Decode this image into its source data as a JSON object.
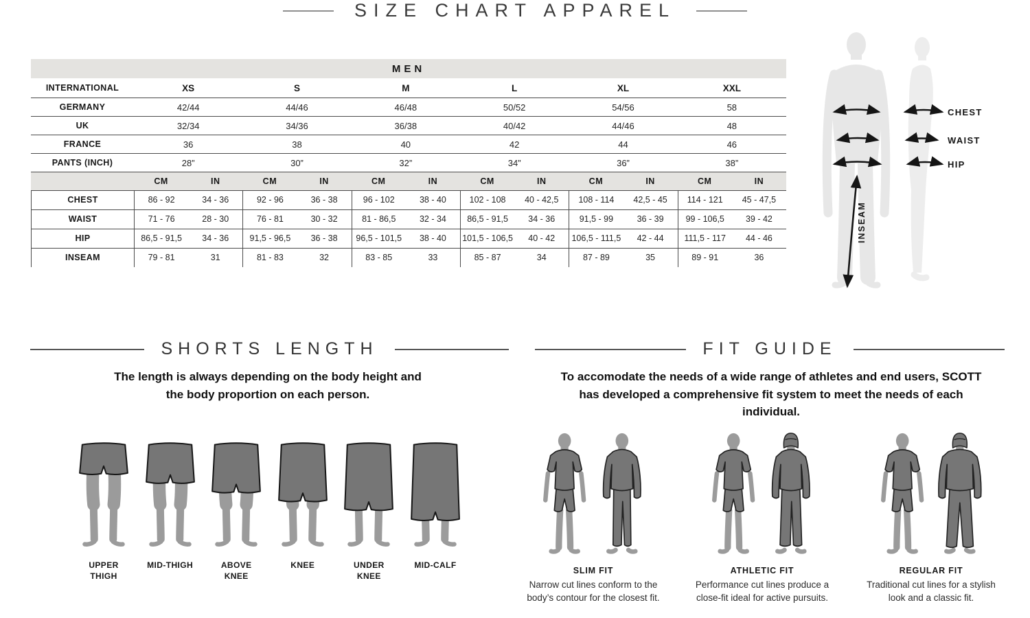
{
  "page_title": "SIZE CHART APPAREL",
  "size_table": {
    "gender_header": "MEN",
    "sizes_row_label": "INTERNATIONAL",
    "sizes": [
      "XS",
      "S",
      "M",
      "L",
      "XL",
      "XXL"
    ],
    "country_rows": [
      {
        "label": "GERMANY",
        "values": [
          "42/44",
          "44/46",
          "46/48",
          "50/52",
          "54/56",
          "58"
        ]
      },
      {
        "label": "UK",
        "values": [
          "32/34",
          "34/36",
          "36/38",
          "40/42",
          "44/46",
          "48"
        ]
      },
      {
        "label": "FRANCE",
        "values": [
          "36",
          "38",
          "40",
          "42",
          "44",
          "46"
        ]
      },
      {
        "label": "PANTS (INCH)",
        "values": [
          "28”",
          "30”",
          "32”",
          "34”",
          "36”",
          "38”"
        ]
      }
    ],
    "unit_headers": {
      "cm": "CM",
      "in": "IN"
    },
    "measurement_rows": [
      {
        "label": "CHEST",
        "cm": [
          "86 - 92",
          "92 - 96",
          "96 - 102",
          "102 - 108",
          "108 - 114",
          "114 - 121"
        ],
        "in": [
          "34 - 36",
          "36 - 38",
          "38 - 40",
          "40 - 42,5",
          "42,5 - 45",
          "45 - 47,5"
        ]
      },
      {
        "label": "WAIST",
        "cm": [
          "71 - 76",
          "76 - 81",
          "81 - 86,5",
          "86,5 - 91,5",
          "91,5 - 99",
          "99 - 106,5"
        ],
        "in": [
          "28 - 30",
          "30 - 32",
          "32 - 34",
          "34 - 36",
          "36 - 39",
          "39 - 42"
        ]
      },
      {
        "label": "HIP",
        "cm": [
          "86,5 - 91,5",
          "91,5 - 96,5",
          "96,5 - 101,5",
          "101,5 - 106,5",
          "106,5 - 111,5",
          "111,5 - 117"
        ],
        "in": [
          "34 - 36",
          "36 - 38",
          "38 - 40",
          "40 - 42",
          "42 - 44",
          "44 - 46"
        ]
      },
      {
        "label": "INSEAM",
        "cm": [
          "79 - 81",
          "81 - 83",
          "83 - 85",
          "85 - 87",
          "87 - 89",
          "89 - 91"
        ],
        "in": [
          "31",
          "32",
          "33",
          "34",
          "35",
          "36"
        ]
      }
    ]
  },
  "body_diagram": {
    "chest_label": "CHEST",
    "waist_label": "WAIST",
    "hip_label": "HIP",
    "inseam_label": "INSEAM"
  },
  "shorts_section": {
    "title": "SHORTS LENGTH",
    "description": "The length is always depending on the body height and the body proportion on each person.",
    "lengths": [
      {
        "label": "UPPER THIGH"
      },
      {
        "label": "MID-THIGH"
      },
      {
        "label": "ABOVE KNEE"
      },
      {
        "label": "KNEE"
      },
      {
        "label": "UNDER KNEE"
      },
      {
        "label": "MID-CALF"
      }
    ]
  },
  "fit_section": {
    "title": "FIT GUIDE",
    "description": "To accomodate the needs of a wide range of athletes and end users, SCOTT has developed a comprehensive fit system to meet the needs of each individual.",
    "fits": [
      {
        "label": "SLIM FIT",
        "description": "Narrow cut lines conform to the body’s contour for the closest fit."
      },
      {
        "label": "ATHLETIC FIT",
        "description": "Performance cut lines produce a close-fit ideal for active pursuits."
      },
      {
        "label": "REGULAR FIT",
        "description": "Traditional cut lines for a stylish look and a classic fit."
      }
    ]
  },
  "colors": {
    "band": "#e4e3e0",
    "line": "#4a4a4a",
    "text": "#1d1d1d",
    "leg_gray": "#9b9b9b",
    "garment_gray": "#767676",
    "silhouette_light": "#e7e7e7"
  }
}
